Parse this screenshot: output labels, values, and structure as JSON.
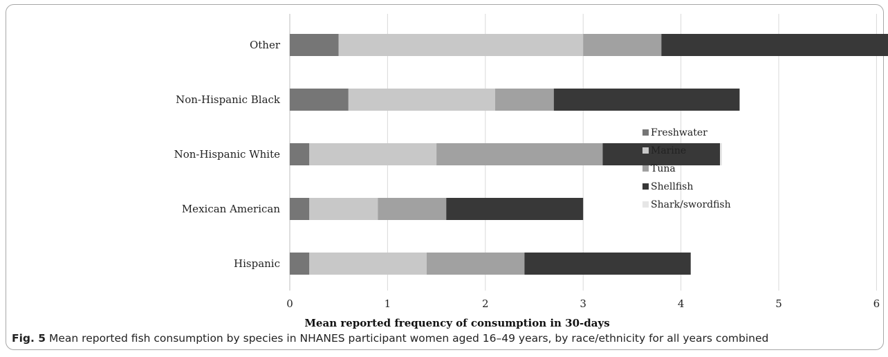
{
  "chart_data": {
    "type": "bar",
    "orientation": "horizontal",
    "stacked": true,
    "categories": [
      "Other",
      "Non-Hispanic Black",
      "Non-Hispanic White",
      "Mexican American",
      "Hispanic"
    ],
    "series": [
      {
        "name": "Freshwater",
        "color": "#767676",
        "values": [
          0.5,
          0.6,
          0.2,
          0.2,
          0.2
        ]
      },
      {
        "name": "Marine",
        "color": "#c8c8c8",
        "values": [
          2.5,
          1.5,
          1.3,
          0.7,
          1.2
        ]
      },
      {
        "name": "Tuna",
        "color": "#a1a1a1",
        "values": [
          0.8,
          0.6,
          1.7,
          0.7,
          1.0
        ]
      },
      {
        "name": "Shellfish",
        "color": "#383838",
        "values": [
          2.6,
          1.9,
          1.2,
          1.4,
          1.7
        ]
      },
      {
        "name": "Shark/swordfish",
        "color": "#e6e6e6",
        "values": [
          0.02,
          0.0,
          0.02,
          0.0,
          0.0
        ]
      }
    ],
    "xlabel": "Mean reported frequency of consumption in 30-days",
    "ylabel": "",
    "xlim": [
      0,
      7
    ],
    "xticks": [
      0,
      1,
      2,
      3,
      4,
      5,
      6,
      7
    ],
    "grid": "vertical",
    "legend_position": "right"
  },
  "caption": {
    "fig_label": "Fig. 5",
    "text": " Mean reported fish consumption by species in NHANES participant women aged 16–49 years, by race/ethnicity for all years combined"
  }
}
